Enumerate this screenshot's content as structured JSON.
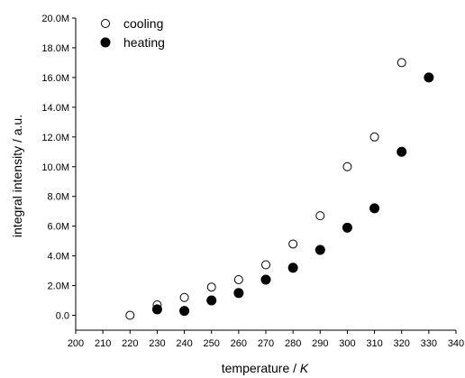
{
  "chart_data": {
    "type": "scatter",
    "title": "",
    "xlabel_prefix": "temperature / ",
    "xlabel_unit": "K",
    "ylabel": "integral intensity / a.u.",
    "xlim": [
      200,
      340
    ],
    "ylim": [
      -1000000,
      20000000
    ],
    "x_ticks": [
      200,
      210,
      220,
      230,
      240,
      250,
      260,
      270,
      280,
      290,
      300,
      310,
      320,
      330,
      340
    ],
    "x_tick_labels": [
      "200",
      "210",
      "220",
      "230",
      "240",
      "250",
      "260",
      "270",
      "280",
      "290",
      "300",
      "310",
      "320",
      "330",
      "340"
    ],
    "y_ticks": [
      0,
      2000000,
      4000000,
      6000000,
      8000000,
      10000000,
      12000000,
      14000000,
      16000000,
      18000000,
      20000000
    ],
    "y_tick_labels": [
      "0.0",
      "2.0M",
      "4.0M",
      "6.0M",
      "8.0M",
      "10.0M",
      "12.0M",
      "14.0M",
      "16.0M",
      "18.0M",
      "20.0M"
    ],
    "grid": false,
    "legend_position": "top-left",
    "series": [
      {
        "name": "cooling",
        "marker": "open-circle",
        "x": [
          220,
          230,
          240,
          250,
          260,
          270,
          280,
          290,
          300,
          310,
          320
        ],
        "y": [
          0,
          700000,
          1200000,
          1900000,
          2400000,
          3400000,
          4800000,
          6700000,
          10000000,
          12000000,
          17000000
        ]
      },
      {
        "name": "heating",
        "marker": "filled-circle",
        "x": [
          230,
          240,
          250,
          260,
          270,
          280,
          290,
          300,
          310,
          320,
          330
        ],
        "y": [
          400000,
          300000,
          1000000,
          1500000,
          2400000,
          3200000,
          4400000,
          5900000,
          7200000,
          11000000,
          16000000
        ]
      }
    ],
    "colors": {
      "marker": "#000000",
      "open_fill": "#ffffff",
      "axis": "#000000"
    }
  }
}
